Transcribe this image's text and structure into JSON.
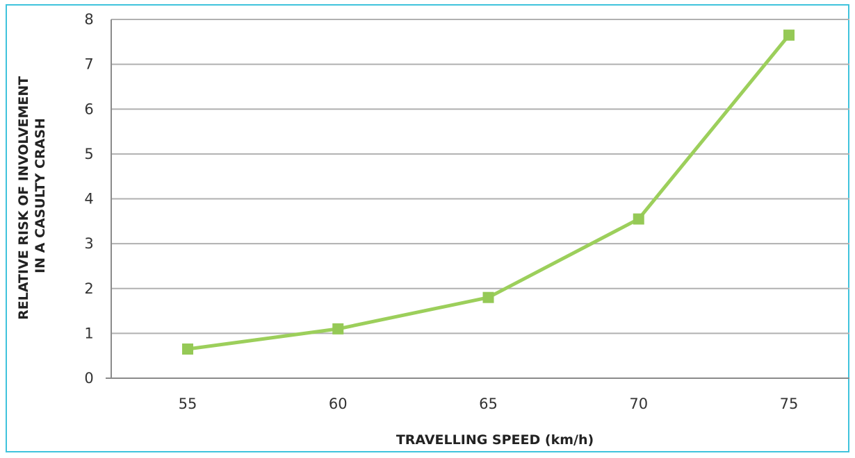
{
  "chart_data": {
    "type": "line",
    "title": "",
    "xlabel": "TRAVELLING SPEED (km/h)",
    "ylabel_lines": [
      "RELATIVE RISK OF INVOLVEMENT",
      "IN A CASULTY CRASH"
    ],
    "categories": [
      "55",
      "60",
      "65",
      "70",
      "75"
    ],
    "x": [
      55,
      60,
      65,
      70,
      75
    ],
    "series": [
      {
        "values": [
          0.65,
          1.1,
          1.8,
          3.55,
          7.65
        ]
      }
    ],
    "ylim": [
      0,
      8
    ],
    "yticks": [
      "0",
      "1",
      "2",
      "3",
      "4",
      "5",
      "6",
      "7",
      "8"
    ],
    "grid": true,
    "legend": "none",
    "colors": {
      "line": "#9ccf5b",
      "marker": "#95c956",
      "grid": "#b0b0b0",
      "frame": "#3fc3dc"
    }
  }
}
